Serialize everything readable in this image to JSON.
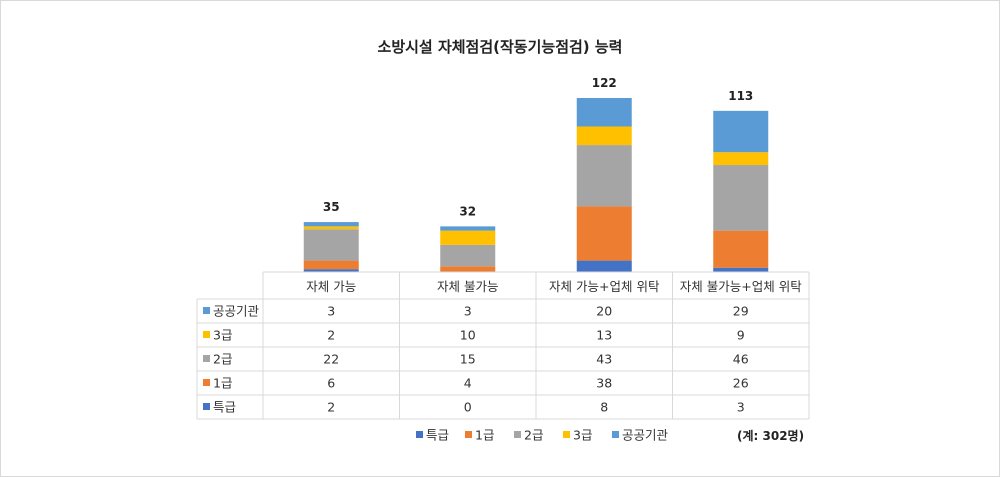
{
  "chart_data": {
    "type": "bar",
    "stacked": true,
    "title": "소방시설 자체점검(작동기능점검) 능력",
    "categories": [
      "자체 가능",
      "자체 불가능",
      "자체 가능+업체 위탁",
      "자체 불가능+업체 위탁"
    ],
    "series": [
      {
        "name": "특급",
        "color": "#4472C4",
        "values": [
          2,
          0,
          8,
          3
        ]
      },
      {
        "name": "1급",
        "color": "#ED7D31",
        "values": [
          6,
          4,
          38,
          26
        ]
      },
      {
        "name": "2급",
        "color": "#A5A5A5",
        "values": [
          22,
          15,
          43,
          46
        ]
      },
      {
        "name": "3급",
        "color": "#FFC000",
        "values": [
          2,
          10,
          13,
          9
        ]
      },
      {
        "name": "공공기관",
        "color": "#5B9BD5",
        "values": [
          3,
          3,
          20,
          29
        ]
      }
    ],
    "totals": [
      35,
      32,
      122,
      113
    ],
    "table_row_order": [
      "공공기관",
      "3급",
      "2급",
      "1급",
      "특급"
    ],
    "legend_position": "bottom",
    "grid": false,
    "ylim": [
      0,
      122
    ]
  },
  "note": "(계: 302명)"
}
